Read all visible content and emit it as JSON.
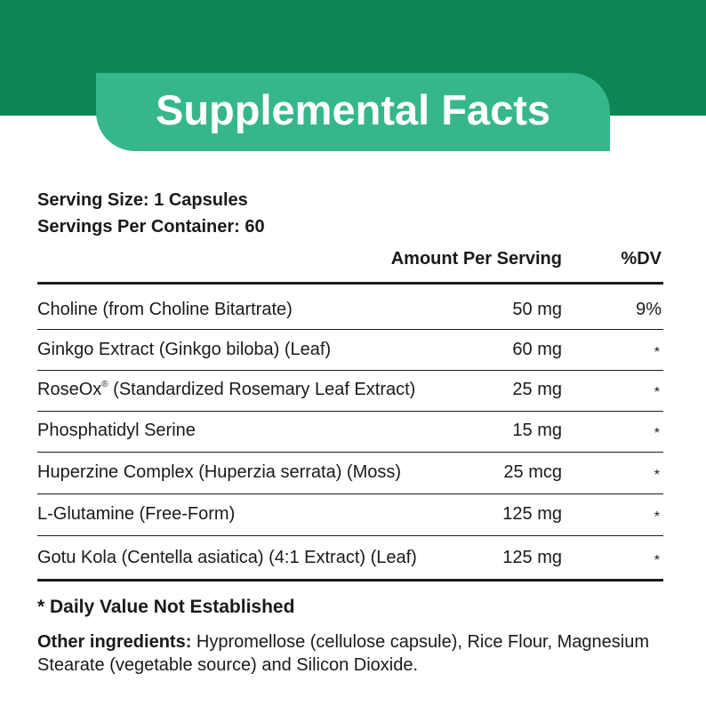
{
  "header": {
    "title": "Supplemental Facts"
  },
  "serving": {
    "size": "Serving Size: 1 Capsules",
    "per_container": "Servings Per Container: 60"
  },
  "table": {
    "columns": [
      "Amount Per Serving",
      "%DV"
    ],
    "rows": [
      {
        "name": "Choline (from Choline Bitartrate)",
        "amount": "50 mg",
        "dv": "9%"
      },
      {
        "name": "Ginkgo Extract (Ginkgo biloba) (Leaf)",
        "amount": "60 mg",
        "dv": "*"
      },
      {
        "name": "RoseOx",
        "mark": "®",
        "name_suffix": " (Standardized Rosemary Leaf Extract)",
        "amount": "25 mg",
        "dv": "*"
      },
      {
        "name": "Phosphatidyl Serine",
        "amount": "15 mg",
        "dv": "*"
      },
      {
        "name": "Huperzine Complex (Huperzia serrata) (Moss)",
        "amount": "25 mcg",
        "dv": "*"
      },
      {
        "name": "L-Glutamine (Free-Form)",
        "amount": "125 mg",
        "dv": "*"
      },
      {
        "name": "Gotu Kola (Centella asiatica) (4:1 Extract) (Leaf)",
        "amount": "125 mg",
        "dv": "*"
      }
    ]
  },
  "footnote": "* Daily Value Not Established",
  "other_ingredients": {
    "label": "Other ingredients:",
    "text": "Hypromellose (cellulose capsule), Rice Flour, Magnesium Stearate (vegetable source) and Silicon Dioxide."
  }
}
